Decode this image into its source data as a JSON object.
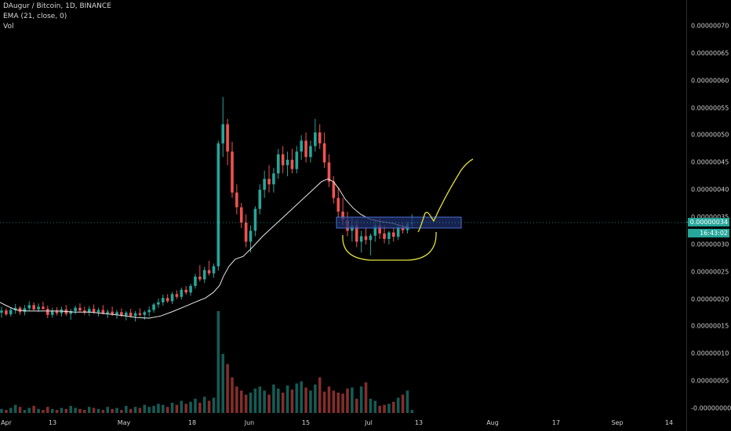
{
  "legend": {
    "symbol": "DAugur / Bitcoin, 1D, BINANCE",
    "ema": "EMA (21, close, 0)",
    "vol": "Vol"
  },
  "price_axis": {
    "labels": [
      "0.00000070",
      "0.00000065",
      "0.00000060",
      "0.00000055",
      "0.00000050",
      "0.00000045",
      "0.00000040",
      "0.00000035",
      "0.00000030",
      "0.00000025",
      "0.00000020",
      "0.00000015",
      "0.00000010",
      "0.00000005",
      "-0.00000000"
    ],
    "current_price": "0.00000034",
    "countdown": "16:43:02"
  },
  "time_axis": {
    "labels": [
      "Apr",
      "13",
      "May",
      "18",
      "Jun",
      "15",
      "Jul",
      "13",
      "Aug",
      "17",
      "Sep",
      "14"
    ]
  },
  "colors": {
    "background": "#000000",
    "up": "#26a69a",
    "down": "#ef5350",
    "ema": "#e8e8e8",
    "drawing": "#e3e03a",
    "zone": "#1e2f6b"
  },
  "chart_data": {
    "type": "candlestick",
    "title": "DAugur / Bitcoin, 1D, BINANCE",
    "ylim": [
      -1e-08,
      7.6e-07
    ],
    "scale": 1e-08,
    "candles_x8": [
      [
        17.5,
        18.6,
        16.6,
        17.9
      ],
      [
        17.9,
        18.3,
        16.9,
        17.2
      ],
      [
        17.2,
        18.5,
        16.8,
        18.0
      ],
      [
        18.0,
        19.1,
        17.3,
        18.4
      ],
      [
        18.4,
        18.7,
        17.1,
        17.6
      ],
      [
        17.6,
        18.9,
        17.0,
        18.3
      ],
      [
        18.3,
        19.6,
        17.8,
        18.9
      ],
      [
        18.9,
        19.4,
        17.9,
        18.1
      ],
      [
        18.1,
        19.2,
        17.6,
        18.6
      ],
      [
        18.6,
        19.5,
        18.0,
        18.2
      ],
      [
        18.2,
        18.8,
        16.5,
        17.1
      ],
      [
        17.1,
        18.4,
        16.6,
        17.9
      ],
      [
        17.9,
        18.5,
        17.0,
        17.4
      ],
      [
        17.4,
        18.6,
        16.8,
        18.1
      ],
      [
        18.1,
        18.9,
        16.9,
        17.3
      ],
      [
        17.3,
        18.2,
        16.2,
        17.8
      ],
      [
        17.8,
        18.8,
        17.2,
        18.4
      ],
      [
        18.4,
        19.2,
        17.6,
        17.9
      ],
      [
        17.9,
        18.6,
        17.1,
        17.5
      ],
      [
        17.5,
        18.7,
        16.9,
        18.2
      ],
      [
        18.2,
        19.0,
        17.3,
        17.6
      ],
      [
        17.6,
        18.4,
        16.8,
        18.0
      ],
      [
        18.0,
        18.9,
        17.2,
        17.4
      ],
      [
        17.4,
        18.1,
        16.5,
        17.7
      ],
      [
        17.7,
        18.6,
        16.9,
        17.2
      ],
      [
        17.2,
        18.0,
        16.4,
        17.6
      ],
      [
        17.6,
        18.3,
        16.7,
        17.0
      ],
      [
        17.0,
        17.8,
        16.1,
        17.5
      ],
      [
        17.5,
        18.2,
        16.6,
        16.9
      ],
      [
        16.9,
        17.8,
        15.9,
        17.4
      ],
      [
        17.4,
        18.3,
        16.8,
        17.1
      ],
      [
        17.1,
        17.9,
        16.2,
        17.6
      ],
      [
        17.6,
        18.6,
        16.8,
        18.0
      ],
      [
        18.0,
        19.3,
        17.5,
        19.0
      ],
      [
        19.0,
        20.1,
        18.4,
        19.4
      ],
      [
        19.4,
        20.8,
        18.8,
        20.2
      ],
      [
        20.2,
        20.9,
        19.3,
        19.6
      ],
      [
        19.6,
        21.3,
        19.1,
        20.9
      ],
      [
        20.9,
        21.6,
        20.0,
        20.4
      ],
      [
        20.4,
        22.1,
        19.9,
        21.7
      ],
      [
        21.7,
        22.4,
        20.8,
        21.2
      ],
      [
        21.2,
        22.8,
        20.6,
        22.4
      ],
      [
        22.4,
        24.6,
        21.9,
        24.1
      ],
      [
        24.1,
        26.2,
        23.2,
        23.6
      ],
      [
        23.6,
        25.9,
        22.9,
        25.3
      ],
      [
        25.3,
        27.0,
        24.3,
        24.7
      ],
      [
        24.7,
        26.5,
        23.9,
        26.0
      ],
      [
        26.0,
        49.0,
        25.2,
        48.5
      ],
      [
        48.5,
        57.0,
        46.0,
        52.0
      ],
      [
        52.0,
        53.0,
        44.5,
        47.0
      ],
      [
        47.0,
        48.8,
        38.5,
        39.5
      ],
      [
        39.5,
        41.0,
        35.5,
        36.8
      ],
      [
        36.8,
        37.6,
        33.0,
        34.0
      ],
      [
        34.0,
        35.5,
        29.5,
        30.5
      ],
      [
        30.5,
        33.5,
        28.5,
        32.5
      ],
      [
        32.5,
        37.0,
        31.5,
        36.5
      ],
      [
        36.5,
        41.0,
        35.5,
        40.0
      ],
      [
        40.0,
        43.5,
        38.5,
        42.0
      ],
      [
        42.0,
        44.5,
        39.5,
        41.0
      ],
      [
        41.0,
        44.0,
        39.5,
        43.0
      ],
      [
        43.0,
        47.5,
        42.0,
        46.5
      ],
      [
        46.5,
        48.0,
        43.0,
        44.5
      ],
      [
        44.5,
        47.0,
        42.5,
        45.5
      ],
      [
        45.5,
        47.5,
        43.0,
        43.8
      ],
      [
        43.8,
        48.0,
        43.0,
        47.0
      ],
      [
        47.0,
        50.0,
        45.5,
        49.0
      ],
      [
        49.0,
        50.5,
        45.0,
        46.0
      ],
      [
        46.0,
        49.0,
        45.0,
        48.0
      ],
      [
        48.0,
        53.0,
        47.0,
        50.5
      ],
      [
        50.5,
        52.0,
        47.5,
        48.5
      ],
      [
        48.5,
        50.5,
        44.0,
        45.0
      ],
      [
        45.0,
        46.5,
        40.5,
        41.5
      ],
      [
        41.5,
        42.5,
        37.5,
        38.5
      ],
      [
        38.5,
        40.5,
        35.0,
        36.0
      ],
      [
        36.0,
        38.5,
        33.5,
        34.5
      ],
      [
        34.5,
        36.0,
        31.5,
        32.5
      ],
      [
        32.5,
        35.0,
        30.5,
        33.5
      ],
      [
        33.5,
        34.5,
        29.5,
        30.5
      ],
      [
        30.5,
        32.5,
        28.5,
        31.5
      ],
      [
        31.5,
        33.0,
        30.0,
        30.8
      ],
      [
        30.8,
        32.0,
        28.0,
        31.6
      ],
      [
        31.6,
        34.5,
        30.5,
        33.5
      ],
      [
        33.5,
        34.8,
        31.0,
        32.0
      ],
      [
        32.0,
        33.5,
        30.2,
        31.0
      ],
      [
        31.0,
        32.5,
        30.0,
        32.2
      ],
      [
        32.2,
        33.0,
        30.5,
        31.4
      ],
      [
        31.4,
        33.5,
        30.8,
        33.2
      ],
      [
        33.2,
        34.0,
        32.0,
        32.6
      ],
      [
        32.6,
        34.2,
        32.0,
        33.8
      ],
      [
        33.8,
        35.5,
        33.0,
        34.0
      ]
    ],
    "ema_x8": [
      [
        0,
        19.4
      ],
      [
        8,
        18.8
      ],
      [
        20,
        18.0
      ],
      [
        35,
        17.8
      ],
      [
        55,
        17.8
      ],
      [
        75,
        17.8
      ],
      [
        95,
        17.6
      ],
      [
        115,
        17.6
      ],
      [
        135,
        17.3
      ],
      [
        155,
        17.0
      ],
      [
        175,
        16.6
      ],
      [
        190,
        16.5
      ],
      [
        205,
        16.9
      ],
      [
        220,
        17.7
      ],
      [
        235,
        18.6
      ],
      [
        250,
        19.5
      ],
      [
        262,
        20.2
      ],
      [
        272,
        21.2
      ],
      [
        280,
        22.5
      ],
      [
        285,
        24.2
      ],
      [
        292,
        26.0
      ],
      [
        300,
        27.3
      ],
      [
        310,
        27.8
      ],
      [
        322,
        29.5
      ],
      [
        335,
        31.5
      ],
      [
        350,
        33.5
      ],
      [
        365,
        35.5
      ],
      [
        380,
        37.5
      ],
      [
        395,
        39.5
      ],
      [
        410,
        41.5
      ],
      [
        418,
        42.0
      ],
      [
        425,
        41.5
      ],
      [
        432,
        40.2
      ],
      [
        440,
        38.3
      ],
      [
        450,
        36.7
      ],
      [
        460,
        35.5
      ],
      [
        472,
        34.6
      ],
      [
        485,
        34.2
      ],
      [
        500,
        33.9
      ],
      [
        512,
        33.4
      ],
      [
        522,
        33.0
      ],
      [
        528,
        33.0
      ]
    ],
    "volume_rel": [
      0.04,
      0.03,
      0.05,
      0.08,
      0.06,
      0.03,
      0.05,
      0.07,
      0.04,
      0.03,
      0.06,
      0.04,
      0.03,
      0.05,
      0.04,
      0.07,
      0.05,
      0.04,
      0.03,
      0.06,
      0.05,
      0.04,
      0.03,
      0.06,
      0.04,
      0.05,
      0.03,
      0.07,
      0.04,
      0.06,
      0.05,
      0.08,
      0.06,
      0.07,
      0.09,
      0.08,
      0.06,
      0.1,
      0.08,
      0.12,
      0.09,
      0.11,
      0.14,
      0.1,
      0.16,
      0.12,
      0.15,
      1.0,
      0.58,
      0.48,
      0.35,
      0.26,
      0.22,
      0.18,
      0.2,
      0.24,
      0.26,
      0.22,
      0.18,
      0.28,
      0.24,
      0.2,
      0.27,
      0.23,
      0.29,
      0.31,
      0.25,
      0.22,
      0.28,
      0.35,
      0.21,
      0.26,
      0.22,
      0.2,
      0.19,
      0.24,
      0.25,
      0.14,
      0.26,
      0.3,
      0.14,
      0.12,
      0.07,
      0.08,
      0.09,
      0.11,
      0.15,
      0.18,
      0.22,
      0.03
    ],
    "support_zone": {
      "low": 33.0,
      "high": 35.0
    },
    "annotation_curve": "rounded bottom / cup projection"
  }
}
